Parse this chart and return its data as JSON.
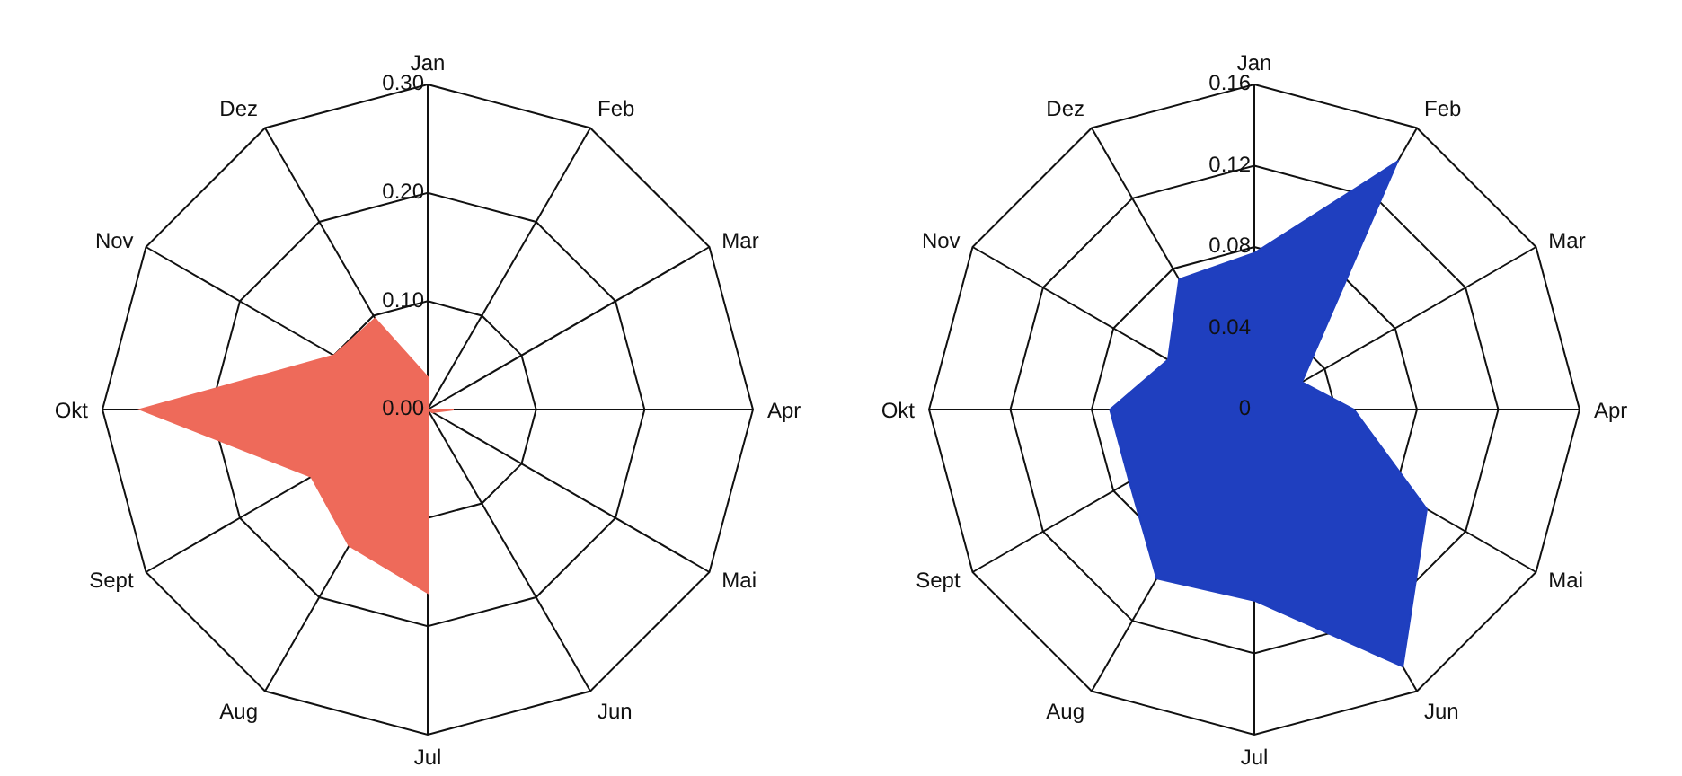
{
  "chart_data": [
    {
      "type": "radar",
      "categories": [
        "Jan",
        "Feb",
        "Mar",
        "Apr",
        "Mai",
        "Jun",
        "Jul",
        "Aug",
        "Sept",
        "Okt",
        "Nov",
        "Dez"
      ],
      "series": [
        {
          "color": "#ee6a5a",
          "values": [
            0.03,
            0.0,
            0.0,
            0.024,
            0.005,
            0.0,
            0.169,
            0.145,
            0.124,
            0.265,
            0.1,
            0.097
          ]
        }
      ],
      "ylim": [
        0,
        0.3
      ],
      "yticks": [
        {
          "value": 0,
          "label": "0.00"
        },
        {
          "value": 0.1,
          "label": "0.10"
        },
        {
          "value": 0.2,
          "label": "0.20"
        },
        {
          "value": 0.3,
          "label": "0.30"
        }
      ],
      "grid": true,
      "legend": false
    },
    {
      "type": "radar",
      "categories": [
        "Jan",
        "Feb",
        "Mar",
        "Apr",
        "Mai",
        "Jun",
        "Jul",
        "Aug",
        "Sept",
        "Okt",
        "Nov",
        "Dez"
      ],
      "series": [
        {
          "color": "#1f3fbf",
          "values": [
            0.077,
            0.141,
            0.027,
            0.049,
            0.098,
            0.146,
            0.094,
            0.096,
            0.071,
            0.071,
            0.049,
            0.074
          ]
        }
      ],
      "ylim": [
        0,
        0.16
      ],
      "yticks": [
        0,
        0.04,
        0.08,
        0.12,
        0.16
      ],
      "grid": true,
      "legend": false
    }
  ]
}
